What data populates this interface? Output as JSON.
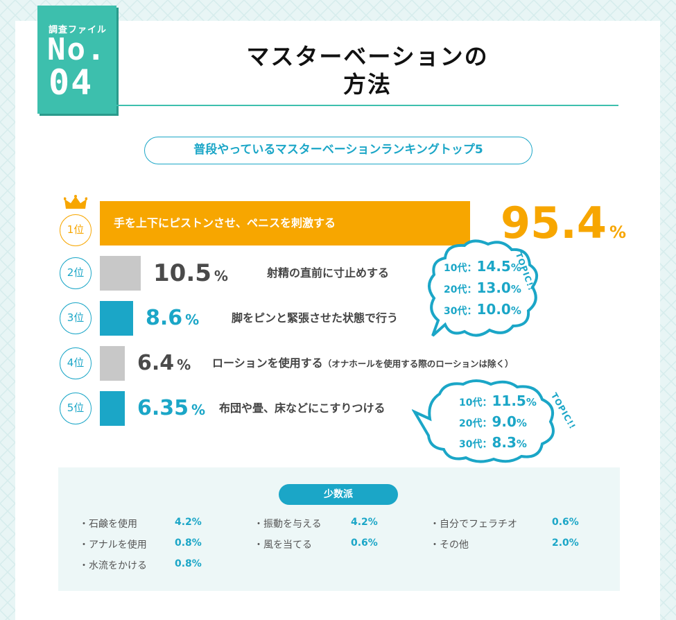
{
  "header": {
    "badge_label": "調査ファイル",
    "badge_no": "No.",
    "badge_number": "04",
    "title_line1": "マスターベーションの",
    "title_line2": "方法",
    "subtitle": "普段やっているマスターベーションランキングトップ5"
  },
  "chart_data": {
    "type": "bar",
    "orientation": "horizontal",
    "title": "普段やっているマスターベーションランキングトップ5",
    "categories": [
      "1位",
      "2位",
      "3位",
      "4位",
      "5位"
    ],
    "values": [
      95.4,
      10.5,
      8.6,
      6.4,
      6.35
    ],
    "ylim": [
      0,
      100
    ],
    "unit": "%",
    "items": [
      {
        "rank": "1位",
        "value_text": "95.4",
        "label": "手を上下にピストンさせ、ペニスを刺激する",
        "note": "",
        "color": "#f7a600",
        "text_color": "#f7a600"
      },
      {
        "rank": "2位",
        "value_text": "10.5",
        "label": "射精の直前に寸止めする",
        "note": "",
        "color": "#c8c8c8",
        "text_color": "#4a4a4a"
      },
      {
        "rank": "3位",
        "value_text": "8.6",
        "label": "脚をピンと緊張させた状態で行う",
        "note": "",
        "color": "#1ba6c7",
        "text_color": "#1ba6c7"
      },
      {
        "rank": "4位",
        "value_text": "6.4",
        "label": "ローションを使用する",
        "note": "（オナホールを使用する際のローションは除く）",
        "color": "#c8c8c8",
        "text_color": "#4a4a4a"
      },
      {
        "rank": "5位",
        "value_text": "6.35",
        "label": "布団や畳、床などにこすりつける",
        "note": "",
        "color": "#1ba6c7",
        "text_color": "#1ba6c7"
      }
    ],
    "percent_sign": "%"
  },
  "topics": [
    {
      "label": "TOPIC!!",
      "rows": [
        {
          "age": "10代",
          "value": "14.5",
          "sep": "：",
          "pct": "%"
        },
        {
          "age": "20代",
          "value": "13.0",
          "sep": "：",
          "pct": "%"
        },
        {
          "age": "30代",
          "value": "10.0",
          "sep": "：",
          "pct": "%"
        }
      ]
    },
    {
      "label": "TOPIC!!",
      "rows": [
        {
          "age": "10代",
          "value": "11.5",
          "sep": "：",
          "pct": "%"
        },
        {
          "age": "20代",
          "value": "9.0",
          "sep": "：",
          "pct": "%"
        },
        {
          "age": "30代",
          "value": "8.3",
          "sep": "：",
          "pct": "%"
        }
      ]
    }
  ],
  "minority": {
    "title": "少数派",
    "items": [
      {
        "name": "・石鹸を使用",
        "value": "4.2%"
      },
      {
        "name": "・アナルを使用",
        "value": "0.8%"
      },
      {
        "name": "・水流をかける",
        "value": "0.8%"
      },
      {
        "name": "・振動を与える",
        "value": "4.2%"
      },
      {
        "name": "・風を当てる",
        "value": "0.6%"
      },
      {
        "name": "・自分でフェラチオ",
        "value": "0.6%"
      },
      {
        "name": "・その他",
        "value": "2.0%"
      }
    ]
  },
  "colors": {
    "accent_teal": "#3dbfad",
    "accent_blue": "#1ba6c7",
    "gold": "#f7a600",
    "gray_bar": "#c8c8c8"
  }
}
